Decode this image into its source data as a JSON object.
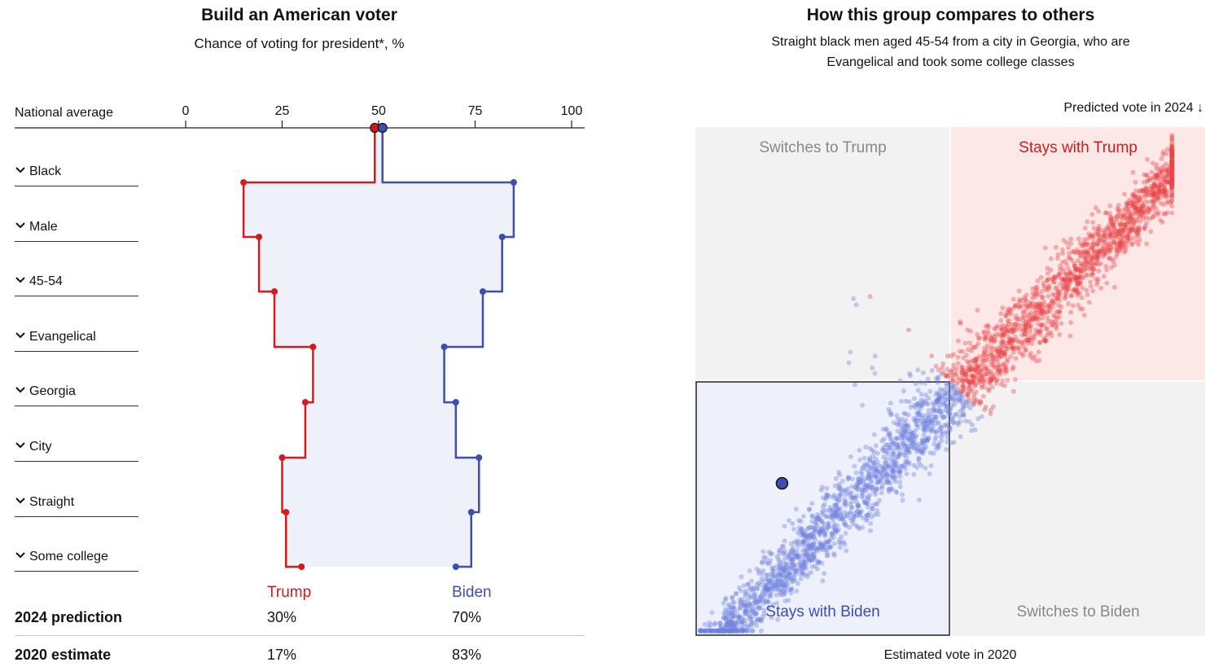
{
  "left": {
    "title": "Build an American voter",
    "subtitle": "Chance of voting for president*, %",
    "national_label": "National average",
    "traits": [
      "Black",
      "Male",
      "45-54",
      "Evangelical",
      "Georgia",
      "City",
      "Straight",
      "Some college"
    ],
    "trait_icon": "chevron-down-icon",
    "legend": {
      "trump": "Trump",
      "biden": "Biden"
    },
    "results": [
      {
        "label": "2024 prediction",
        "trump": "30%",
        "biden": "70%"
      },
      {
        "label": "2020 estimate",
        "trump": "17%",
        "biden": "83%"
      }
    ],
    "colors": {
      "trump": "#d7191c",
      "biden": "#3b4fb0",
      "fill": "#eef0fa"
    }
  },
  "right": {
    "title": "How this group compares to others",
    "subtitle_line1": "Straight black men aged 45-54 from a city in Georgia, who are",
    "subtitle_line2": "Evangelical and took some college classes",
    "y_label": "Predicted vote in 2024 ↓",
    "x_label": "Estimated vote in 2020",
    "quadrants": {
      "top_left": "Switches to Trump",
      "top_right": "Stays with Trump",
      "bottom_left": "Stays with Biden",
      "bottom_right": "Switches to Biden"
    },
    "colors": {
      "trump_point": "#e8474a",
      "biden_point": "#6f80dc",
      "quadrant_grey": "#f2f2f2",
      "quadrant_red": "#fde8e8",
      "quadrant_blue": "#eef0fb"
    }
  },
  "chart_data": [
    {
      "type": "line",
      "xlim": [
        0,
        100
      ],
      "x_ticks": [
        0,
        25,
        50,
        75,
        100
      ],
      "categories": [
        "National average",
        "Black",
        "Male",
        "45-54",
        "Evangelical",
        "Georgia",
        "City",
        "Straight",
        "Some college"
      ],
      "series": [
        {
          "name": "Trump",
          "values": [
            49,
            15,
            19,
            23,
            33,
            31,
            25,
            26,
            30
          ]
        },
        {
          "name": "Biden",
          "values": [
            51,
            85,
            82,
            77,
            67,
            70,
            76,
            74,
            70
          ]
        }
      ]
    },
    {
      "type": "scatter",
      "xlabel": "Estimated vote in 2020",
      "ylabel": "Predicted vote in 2024",
      "point_count": 3000,
      "highlight": {
        "x": 0.17,
        "y": 0.3
      }
    }
  ]
}
